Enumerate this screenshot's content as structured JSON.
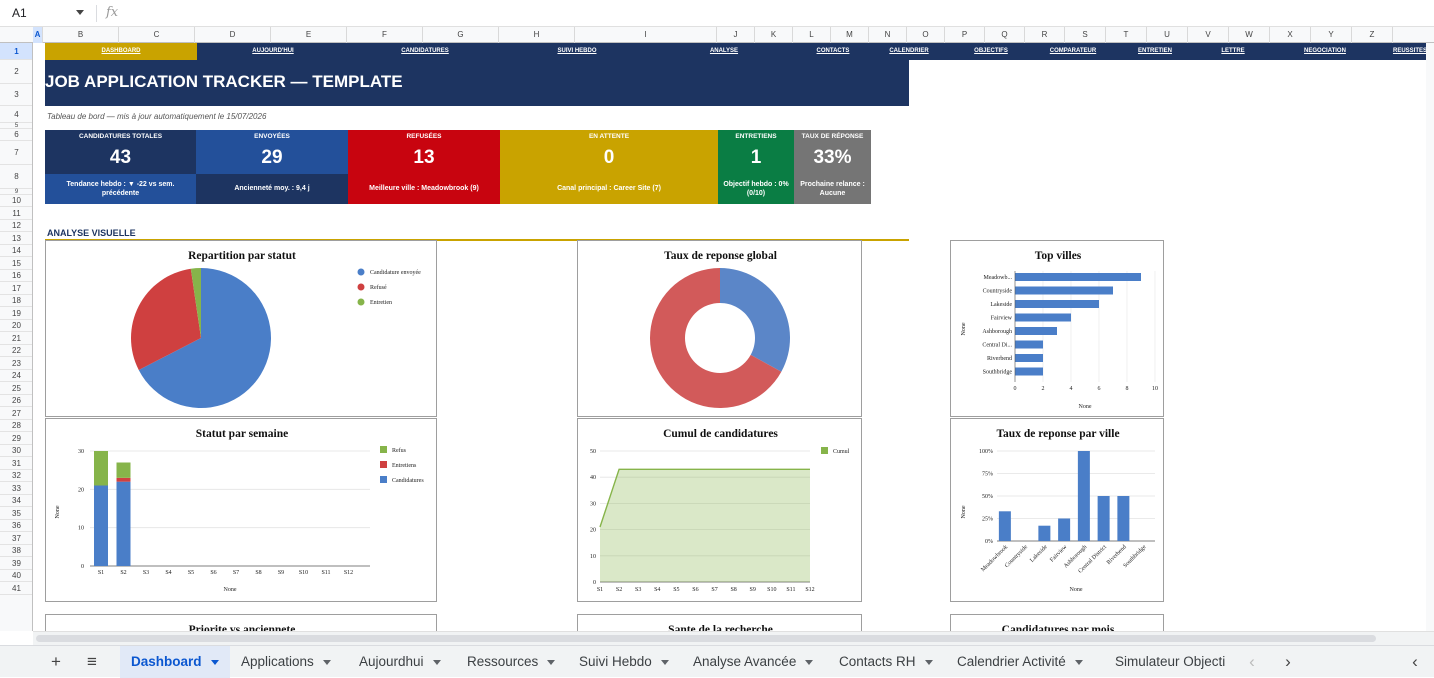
{
  "namebox": "A1",
  "fx_label": "fx",
  "columns": [
    "A",
    "B",
    "C",
    "D",
    "E",
    "F",
    "G",
    "H",
    "I",
    "J",
    "K",
    "L",
    "M",
    "N",
    "O",
    "P",
    "Q",
    "R",
    "S",
    "T",
    "U",
    "V",
    "W",
    "X",
    "Y",
    "Z"
  ],
  "rows": [
    "1",
    "2",
    "3",
    "4",
    "5",
    "6",
    "7",
    "8",
    "9",
    "10",
    "11",
    "12",
    "13",
    "14",
    "15",
    "16",
    "17",
    "18",
    "19",
    "20",
    "21",
    "22",
    "23",
    "24",
    "25",
    "26",
    "27",
    "28",
    "29",
    "30",
    "31",
    "32",
    "33",
    "34",
    "35",
    "36",
    "37",
    "38",
    "39",
    "40",
    "41"
  ],
  "nav": [
    "DASHBOARD",
    "AUJOURD'HUI",
    "CANDIDATURES",
    "SUIVI HEBDO",
    "ANALYSE",
    "CONTACTS",
    "CALENDRIER",
    "OBJECTIFS",
    "COMPARATEUR",
    "ENTRETIEN",
    "LETTRE",
    "NEGOCIATION",
    "REUSSITES"
  ],
  "title": "JOB APPLICATION TRACKER — TEMPLATE",
  "subtitle": "Tableau de bord — mis à jour automatiquement le 15/07/2026",
  "kpis": [
    {
      "label": "CANDIDATURES TOTALES",
      "value": "43",
      "foot": "Tendance hebdo : ▼ -22 vs sem. précédente",
      "color": "#1d3461",
      "foot_color": "#23509a"
    },
    {
      "label": "ENVOYÉES",
      "value": "29",
      "foot": "Ancienneté moy. : 9,4 j",
      "color": "#23509a",
      "foot_color": "#1d3461"
    },
    {
      "label": "REFUSÉES",
      "value": "13",
      "foot": "Meilleure ville : Meadowbrook (9)",
      "color": "#c8040f",
      "foot_color": "#c8040f"
    },
    {
      "label": "EN ATTENTE",
      "value": "0",
      "foot": "Canal principal : Career Site (7)",
      "color": "#c9a300",
      "foot_color": "#c9a300"
    },
    {
      "label": "ENTRETIENS",
      "value": "1",
      "foot": "Objectif hebdo : 0% (0/10)",
      "color": "#0a7d44",
      "foot_color": "#0a7d44"
    },
    {
      "label": "TAUX DE RÉPONSE",
      "value": "33%",
      "foot": "Prochaine relance : Aucune",
      "color": "#757575",
      "foot_color": "#757575"
    }
  ],
  "section_label": "ANALYSE VISUELLE",
  "chart_data": [
    {
      "id": "pie-status",
      "type": "pie",
      "title": "Repartition par statut",
      "labels": [
        "Candidature envoyée",
        "Refusé",
        "Entretien"
      ],
      "values": [
        29,
        13,
        1
      ],
      "colors": [
        "#4a7ec8",
        "#cf4040",
        "#86b44a"
      ]
    },
    {
      "id": "donut-response",
      "type": "pie",
      "title": "Taux de reponse global",
      "labels": [
        "",
        ""
      ],
      "values": [
        33,
        67
      ],
      "colors": [
        "#5b86c8",
        "#d25a5a"
      ],
      "hole": 0.5
    },
    {
      "id": "top-cities",
      "type": "bar",
      "orientation": "horizontal",
      "title": "Top villes",
      "categories": [
        "Meadowb...",
        "Countryside",
        "Lakeside",
        "Fairview",
        "Ashborough",
        "Central Di...",
        "Riverbend",
        "Southbridge"
      ],
      "values": [
        9,
        7,
        6,
        4,
        3,
        2,
        2,
        2
      ],
      "xticks": [
        "0",
        "2",
        "4",
        "6",
        "8",
        "10"
      ],
      "xlim": [
        0,
        10
      ],
      "xlabel": "None",
      "ylabel": "None",
      "color": "#4a7ec8"
    },
    {
      "id": "status-week",
      "type": "bar",
      "stacked": true,
      "title": "Statut par semaine",
      "categories": [
        "S1",
        "S2",
        "S3",
        "S4",
        "S5",
        "S6",
        "S7",
        "S8",
        "S9",
        "S10",
        "S11",
        "S12"
      ],
      "series": [
        {
          "name": "Candidatures",
          "values": [
            21,
            22,
            0,
            0,
            0,
            0,
            0,
            0,
            0,
            0,
            0,
            0
          ],
          "color": "#4a7ec8"
        },
        {
          "name": "Entretiens",
          "values": [
            0,
            1,
            0,
            0,
            0,
            0,
            0,
            0,
            0,
            0,
            0,
            0
          ],
          "color": "#cf4040"
        },
        {
          "name": "Refus",
          "values": [
            9,
            4,
            0,
            0,
            0,
            0,
            0,
            0,
            0,
            0,
            0,
            0
          ],
          "color": "#86b44a"
        }
      ],
      "yticks": [
        "0",
        "10",
        "20",
        "30"
      ],
      "ylim": [
        0,
        30
      ],
      "xlabel": "None",
      "ylabel": "None"
    },
    {
      "id": "cumul",
      "type": "area",
      "title": "Cumul de candidatures",
      "x": [
        "S1",
        "S2",
        "S3",
        "S4",
        "S5",
        "S6",
        "S7",
        "S8",
        "S9",
        "S10",
        "S11",
        "S12"
      ],
      "series": [
        {
          "name": "Cumul",
          "values": [
            21,
            43,
            43,
            43,
            43,
            43,
            43,
            43,
            43,
            43,
            43,
            43
          ],
          "color": "#86b44a"
        }
      ],
      "yticks": [
        "0",
        "10",
        "20",
        "30",
        "40",
        "50"
      ],
      "ylim": [
        0,
        50
      ]
    },
    {
      "id": "response-city",
      "type": "bar",
      "title": "Taux de reponse par ville",
      "categories": [
        "Meadowbrook",
        "Countryside",
        "Lakeside",
        "Fairview",
        "Ashborough",
        "Central District",
        "Riverbend",
        "Southbridge"
      ],
      "values": [
        33,
        0,
        17,
        25,
        100,
        50,
        50,
        0
      ],
      "yticks": [
        "0%",
        "25%",
        "50%",
        "75%",
        "100%"
      ],
      "ylim": [
        0,
        100
      ],
      "xlabel": "None",
      "ylabel": "None",
      "color": "#4a7ec8"
    },
    {
      "id": "priority-age",
      "type": "scatter",
      "title": "Priorite vs anciennete"
    },
    {
      "id": "health",
      "type": "bar",
      "title": "Sante de la recherche"
    },
    {
      "id": "monthly",
      "type": "bar",
      "title": "Candidatures par mois"
    }
  ],
  "tabs": [
    "Dashboard",
    "Applications",
    "Aujourdhui",
    "Ressources",
    "Suivi Hebdo",
    "Analyse Avancée",
    "Contacts RH",
    "Calendrier Activité",
    "Simulateur Objecti"
  ],
  "tab_icons": {
    "add": "+",
    "menu": "≡",
    "prev": "‹",
    "next": "›",
    "collapse": "‹"
  }
}
